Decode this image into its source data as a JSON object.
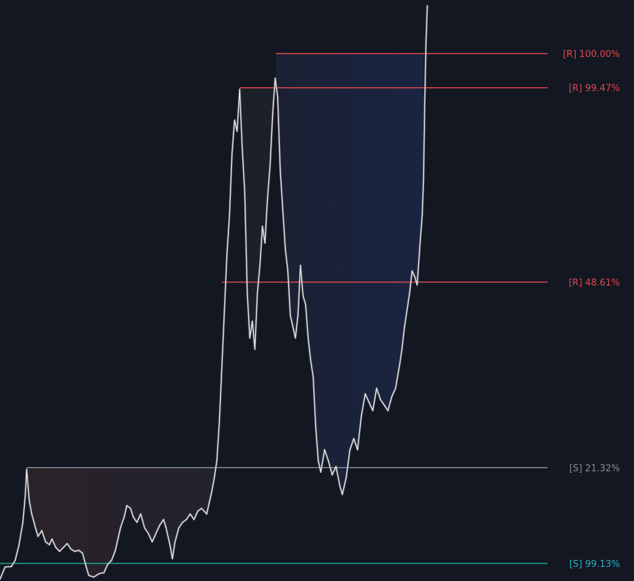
{
  "colors": {
    "background": "#131722",
    "price": "#e8e8e8",
    "resistance": "#e0484d",
    "support_gray": "#8a8d94",
    "support_teal": "#1fa88f",
    "label_teal": "#2ab2c2",
    "zone_warm": "#2a2228",
    "zone_cool": "#1a2440"
  },
  "chart_data": {
    "type": "line",
    "title": "",
    "xlabel": "",
    "ylabel": "",
    "grid": false,
    "ylim": [
      -3.5,
      100.5
    ],
    "levels": [
      {
        "label": "[R] 100.00%",
        "kind": "resistance",
        "value": 90.9,
        "x_start": 0.435
      },
      {
        "label": "[R] 99.47%",
        "kind": "resistance",
        "value": 84.8,
        "x_start": 0.378
      },
      {
        "label": "[R] 48.61%",
        "kind": "resistance",
        "value": 50.0,
        "x_start": 0.35
      },
      {
        "label": "[S] 21.32%",
        "kind": "support",
        "value": 16.8,
        "x_start": 0.042
      },
      {
        "label": "[S] 99.13%",
        "kind": "support-strong",
        "value": -0.35,
        "x_start": 0.0
      }
    ],
    "series": [
      {
        "values": [
          [
            0.0,
            -3.2
          ],
          [
            0.008,
            -1.0
          ],
          [
            0.018,
            -0.9
          ],
          [
            0.024,
            0.2
          ],
          [
            0.03,
            3.0
          ],
          [
            0.036,
            7.0
          ],
          [
            0.04,
            12.0
          ],
          [
            0.042,
            16.5
          ],
          [
            0.046,
            11.0
          ],
          [
            0.05,
            8.5
          ],
          [
            0.056,
            6.0
          ],
          [
            0.06,
            4.5
          ],
          [
            0.066,
            5.5
          ],
          [
            0.072,
            3.5
          ],
          [
            0.078,
            3.0
          ],
          [
            0.082,
            4.0
          ],
          [
            0.088,
            2.5
          ],
          [
            0.094,
            1.8
          ],
          [
            0.1,
            2.5
          ],
          [
            0.106,
            3.2
          ],
          [
            0.112,
            2.2
          ],
          [
            0.118,
            1.8
          ],
          [
            0.124,
            2.0
          ],
          [
            0.13,
            1.5
          ],
          [
            0.136,
            -1.0
          ],
          [
            0.14,
            -2.5
          ],
          [
            0.148,
            -2.8
          ],
          [
            0.156,
            -2.2
          ],
          [
            0.164,
            -2.0
          ],
          [
            0.17,
            -0.5
          ],
          [
            0.176,
            0.2
          ],
          [
            0.182,
            2.0
          ],
          [
            0.186,
            4.0
          ],
          [
            0.19,
            6.0
          ],
          [
            0.196,
            8.0
          ],
          [
            0.2,
            10.0
          ],
          [
            0.206,
            9.5
          ],
          [
            0.21,
            8.0
          ],
          [
            0.216,
            7.0
          ],
          [
            0.222,
            8.5
          ],
          [
            0.228,
            6.0
          ],
          [
            0.234,
            5.0
          ],
          [
            0.24,
            3.5
          ],
          [
            0.246,
            5.0
          ],
          [
            0.252,
            6.5
          ],
          [
            0.258,
            7.5
          ],
          [
            0.262,
            6.0
          ],
          [
            0.268,
            3.0
          ],
          [
            0.272,
            0.5
          ],
          [
            0.276,
            3.5
          ],
          [
            0.282,
            6.0
          ],
          [
            0.288,
            7.0
          ],
          [
            0.294,
            7.5
          ],
          [
            0.3,
            8.5
          ],
          [
            0.306,
            7.5
          ],
          [
            0.312,
            9.0
          ],
          [
            0.318,
            9.5
          ],
          [
            0.322,
            9.0
          ],
          [
            0.326,
            8.5
          ],
          [
            0.33,
            10.5
          ],
          [
            0.334,
            12.5
          ],
          [
            0.338,
            15.0
          ],
          [
            0.342,
            18.0
          ],
          [
            0.346,
            25.0
          ],
          [
            0.35,
            35.0
          ],
          [
            0.354,
            45.0
          ],
          [
            0.358,
            55.0
          ],
          [
            0.362,
            62.0
          ],
          [
            0.366,
            73.0
          ],
          [
            0.37,
            79.0
          ],
          [
            0.374,
            77.0
          ],
          [
            0.378,
            84.5
          ],
          [
            0.382,
            74.0
          ],
          [
            0.386,
            66.0
          ],
          [
            0.39,
            48.0
          ],
          [
            0.394,
            40.0
          ],
          [
            0.398,
            43.0
          ],
          [
            0.402,
            38.0
          ],
          [
            0.406,
            48.0
          ],
          [
            0.41,
            53.0
          ],
          [
            0.414,
            60.0
          ],
          [
            0.418,
            57.0
          ],
          [
            0.422,
            65.0
          ],
          [
            0.426,
            71.0
          ],
          [
            0.43,
            80.0
          ],
          [
            0.434,
            86.5
          ],
          [
            0.438,
            83.0
          ],
          [
            0.442,
            70.0
          ],
          [
            0.446,
            63.0
          ],
          [
            0.45,
            56.0
          ],
          [
            0.454,
            52.0
          ],
          [
            0.458,
            44.0
          ],
          [
            0.462,
            42.0
          ],
          [
            0.466,
            40.0
          ],
          [
            0.47,
            44.0
          ],
          [
            0.474,
            53.0
          ],
          [
            0.478,
            47.5
          ],
          [
            0.482,
            46.0
          ],
          [
            0.486,
            40.0
          ],
          [
            0.49,
            36.0
          ],
          [
            0.494,
            33.0
          ],
          [
            0.498,
            24.0
          ],
          [
            0.502,
            18.0
          ],
          [
            0.506,
            16.0
          ],
          [
            0.512,
            20.0
          ],
          [
            0.518,
            18.0
          ],
          [
            0.524,
            15.5
          ],
          [
            0.53,
            17.0
          ],
          [
            0.536,
            13.5
          ],
          [
            0.54,
            12.0
          ],
          [
            0.546,
            15.0
          ],
          [
            0.552,
            20.0
          ],
          [
            0.558,
            22.0
          ],
          [
            0.564,
            20.0
          ],
          [
            0.57,
            26.0
          ],
          [
            0.576,
            30.0
          ],
          [
            0.582,
            28.5
          ],
          [
            0.588,
            27.0
          ],
          [
            0.594,
            31.0
          ],
          [
            0.6,
            29.0
          ],
          [
            0.606,
            28.0
          ],
          [
            0.612,
            27.0
          ],
          [
            0.618,
            29.5
          ],
          [
            0.624,
            31.0
          ],
          [
            0.63,
            35.0
          ],
          [
            0.634,
            38.0
          ],
          [
            0.638,
            42.0
          ],
          [
            0.642,
            45.0
          ],
          [
            0.646,
            48.0
          ],
          [
            0.65,
            52.0
          ],
          [
            0.654,
            51.0
          ],
          [
            0.658,
            49.5
          ],
          [
            0.662,
            56.0
          ],
          [
            0.666,
            62.0
          ],
          [
            0.668,
            68.0
          ],
          [
            0.67,
            82.0
          ],
          [
            0.672,
            93.0
          ],
          [
            0.674,
            99.5
          ]
        ]
      }
    ]
  },
  "zones": [
    {
      "x0": 0.042,
      "x1": 0.342,
      "top": 16.8,
      "fill": "warm-to-gray"
    },
    {
      "x0": 0.378,
      "x1": 0.435,
      "top": 84.8,
      "fill": "gray"
    },
    {
      "x0": 0.435,
      "x1": 0.668,
      "top": 90.9,
      "fill": "navy"
    }
  ]
}
